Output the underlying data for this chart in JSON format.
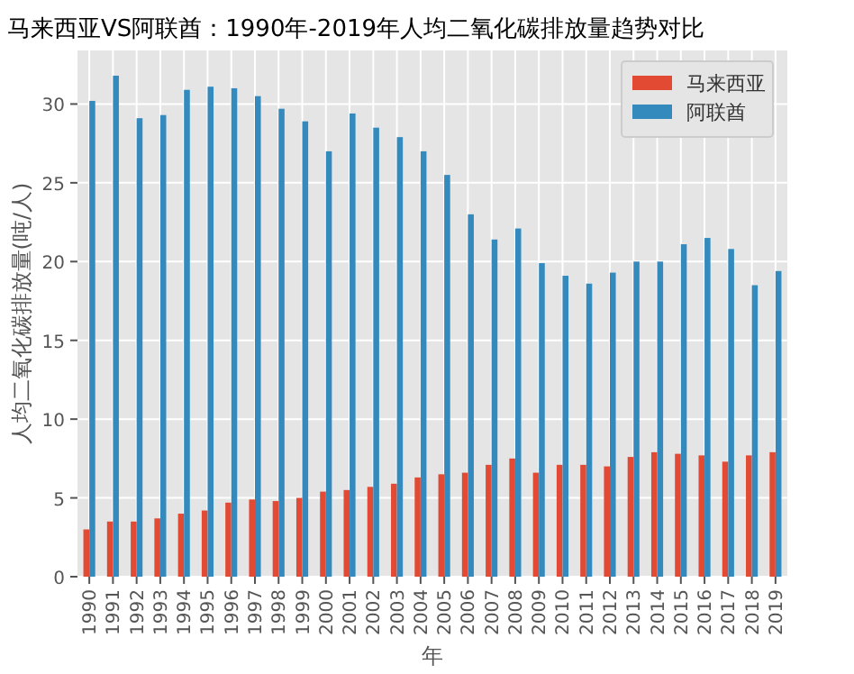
{
  "chart_data": {
    "type": "bar",
    "title": "马来西亚VS阿联酋：1990年-2019年人均二氧化碳排放量趋势对比",
    "xlabel": "年",
    "ylabel": "人均二氧化碳排放量(吨/人)",
    "categories": [
      "1990",
      "1991",
      "1992",
      "1993",
      "1994",
      "1995",
      "1996",
      "1997",
      "1998",
      "1999",
      "2000",
      "2001",
      "2002",
      "2003",
      "2004",
      "2005",
      "2006",
      "2007",
      "2008",
      "2009",
      "2010",
      "2011",
      "2012",
      "2013",
      "2014",
      "2015",
      "2016",
      "2017",
      "2018",
      "2019"
    ],
    "series": [
      {
        "name": "马来西亚",
        "color": "#e24a33",
        "values": [
          3.0,
          3.5,
          3.5,
          3.7,
          4.0,
          4.2,
          4.7,
          4.9,
          4.8,
          5.0,
          5.4,
          5.5,
          5.7,
          5.9,
          6.3,
          6.5,
          6.6,
          7.1,
          7.5,
          6.6,
          7.1,
          7.1,
          7.0,
          7.6,
          7.9,
          7.8,
          7.7,
          7.3,
          7.7,
          7.9
        ]
      },
      {
        "name": "阿联酋",
        "color": "#348abd",
        "values": [
          30.2,
          31.8,
          29.1,
          29.3,
          30.9,
          31.1,
          31.0,
          30.5,
          29.7,
          28.9,
          27.0,
          29.4,
          28.5,
          27.9,
          27.0,
          25.5,
          23.0,
          21.4,
          22.1,
          19.9,
          19.1,
          18.6,
          19.3,
          20.0,
          20.0,
          21.1,
          21.5,
          20.8,
          18.5,
          19.4
        ]
      }
    ],
    "ylim": [
      0,
      33.4
    ],
    "yticks": [
      0,
      5,
      10,
      15,
      20,
      25,
      30
    ],
    "grid": true,
    "legend": "top right"
  }
}
